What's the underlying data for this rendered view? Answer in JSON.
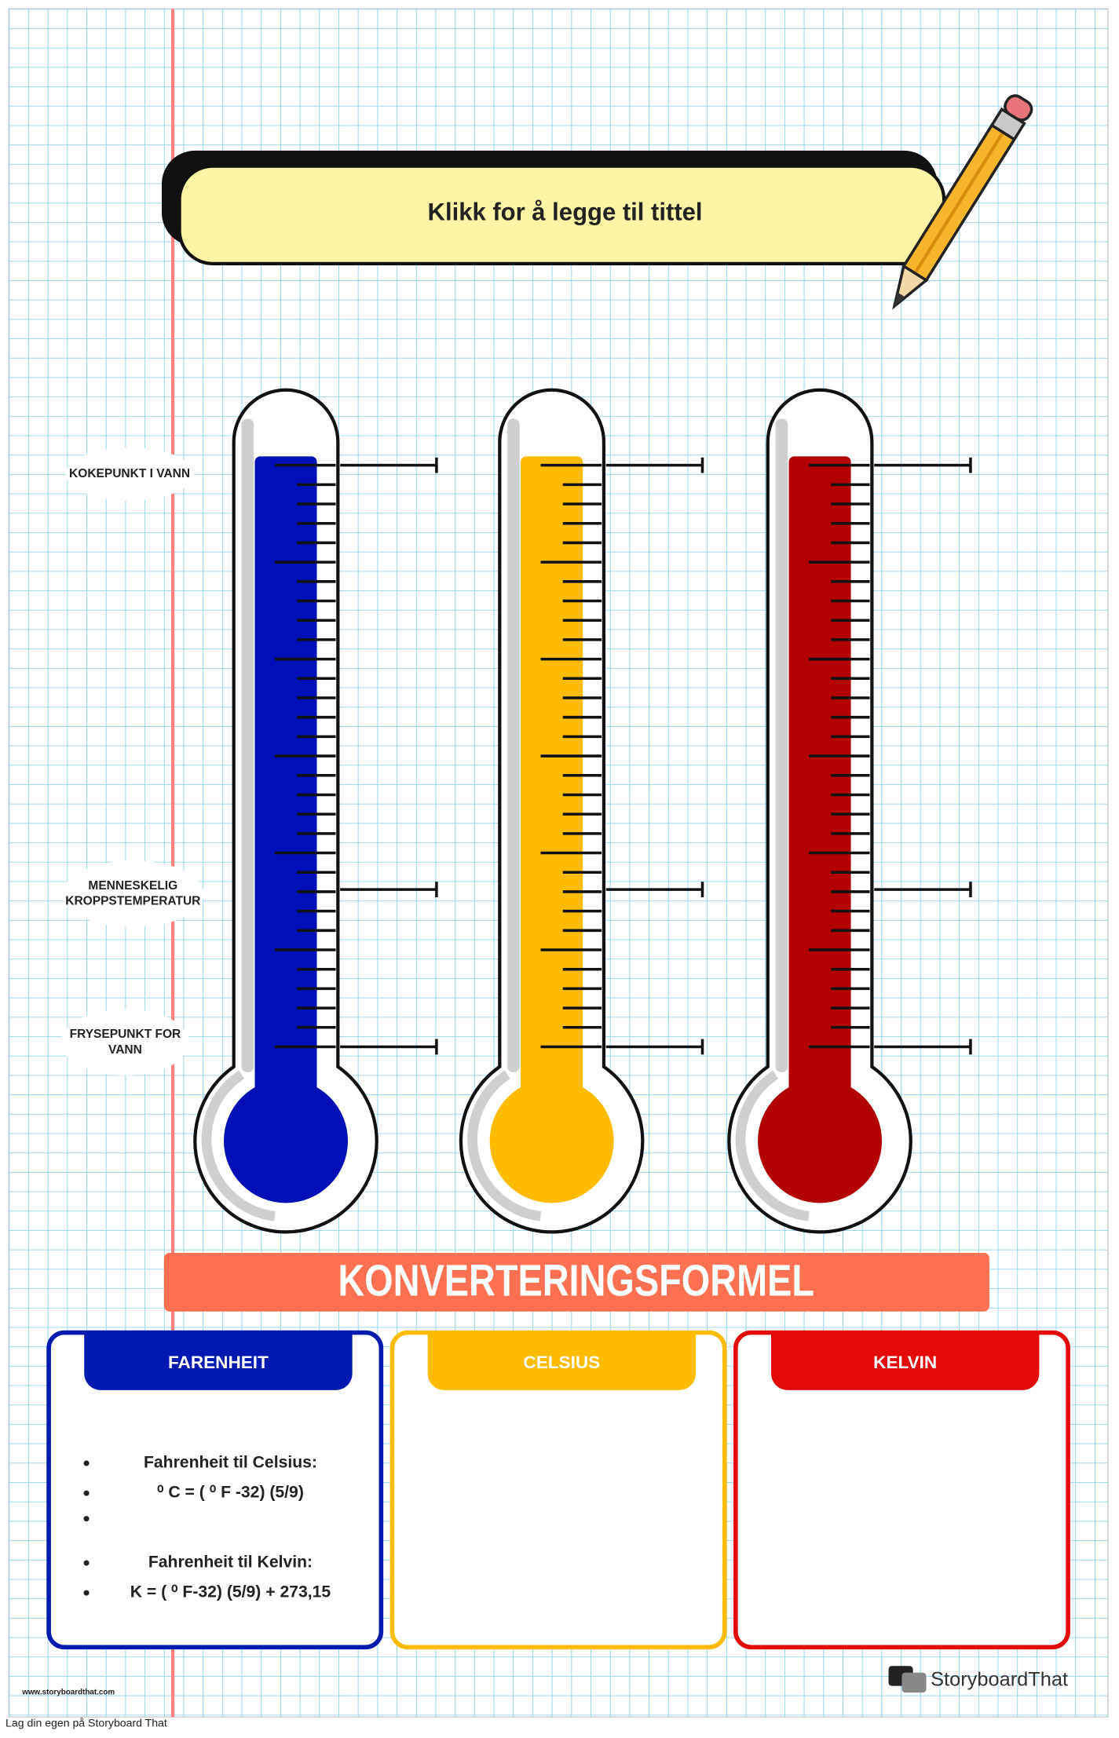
{
  "header": {
    "title": "Klikk for å legge til tittel"
  },
  "labels": [
    {
      "lines": [
        "KOKEPUNKT I VANN"
      ]
    },
    {
      "lines": [
        "MENNESKELIG",
        "KROPPSTEMPERATUR"
      ]
    },
    {
      "lines": [
        "FRYSEPUNKT FOR",
        "VANN"
      ]
    }
  ],
  "section": {
    "title": "KONVERTERINGSFORMEL"
  },
  "cards": [
    {
      "title": "FARENHEIT",
      "lines": [
        "Fahrenheit til Celsius:",
        "⁰ C = ( ⁰ F -32) (5/9)",
        "Fahrenheit til Kelvin:",
        "K = ( ⁰ F-32) (5/9) + 273,15"
      ]
    },
    {
      "title": "CELSIUS"
    },
    {
      "title": "KELVIN"
    }
  ],
  "footer": {
    "url": "www.storyboardthat.com",
    "logo": "StoryboardThat",
    "credit": "Lag din egen på Storyboard That"
  }
}
